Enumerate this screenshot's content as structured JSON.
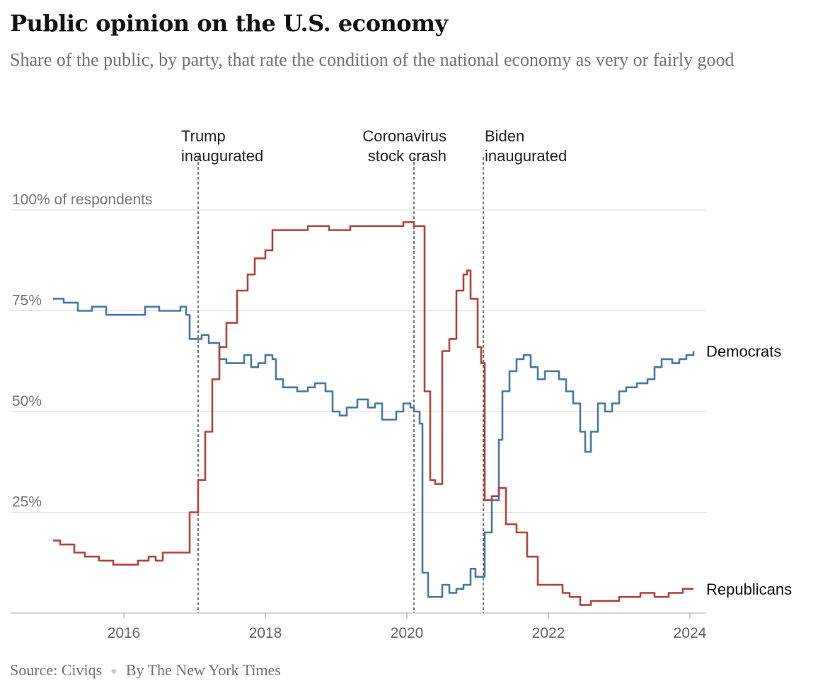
{
  "header": {
    "title": "Public opinion on the U.S. economy",
    "subtitle": "Share of the public, by party, that rate the condition of the national economy as very or fairly good"
  },
  "footer": {
    "source": "Source: Civiqs",
    "byline": "By The New York Times"
  },
  "chart_data": {
    "type": "line",
    "x_axis": {
      "min": 2015.0,
      "max": 2024.1,
      "ticks": [
        2016,
        2018,
        2020,
        2022,
        2024
      ],
      "tick_labels": [
        "2016",
        "2018",
        "2020",
        "2022",
        "2024"
      ]
    },
    "y_axis": {
      "min": 0,
      "max": 100,
      "ticks": [
        25,
        50,
        75,
        100
      ],
      "tick_labels": [
        "25%",
        "50%",
        "75%",
        "100% of respondents"
      ]
    },
    "grid": true,
    "colors": {
      "democrats": "#4a76a8",
      "republicans": "#b0443c",
      "grid": "#dddddd",
      "annotation": "#333333"
    },
    "annotations": [
      {
        "x": 2017.05,
        "lines": [
          "Trump",
          "inaugurated"
        ],
        "align": "left"
      },
      {
        "x": 2020.1,
        "lines": [
          "Coronavirus",
          "stock crash"
        ],
        "align": "right"
      },
      {
        "x": 2021.08,
        "lines": [
          "Biden",
          "inaugurated"
        ],
        "align": "left"
      }
    ],
    "series": [
      {
        "name": "Democrats",
        "color": "#4a76a8",
        "points": [
          [
            2015.0,
            78
          ],
          [
            2015.15,
            77
          ],
          [
            2015.35,
            75
          ],
          [
            2015.55,
            76
          ],
          [
            2015.75,
            74
          ],
          [
            2016.0,
            74
          ],
          [
            2016.3,
            76
          ],
          [
            2016.5,
            75
          ],
          [
            2016.8,
            76
          ],
          [
            2016.88,
            74
          ],
          [
            2016.93,
            68
          ],
          [
            2017.1,
            69
          ],
          [
            2017.2,
            67
          ],
          [
            2017.35,
            63
          ],
          [
            2017.45,
            62
          ],
          [
            2017.65,
            62
          ],
          [
            2017.7,
            64
          ],
          [
            2017.8,
            61
          ],
          [
            2017.9,
            62
          ],
          [
            2018.0,
            64
          ],
          [
            2018.1,
            63
          ],
          [
            2018.15,
            58
          ],
          [
            2018.25,
            56
          ],
          [
            2018.45,
            55
          ],
          [
            2018.6,
            56
          ],
          [
            2018.7,
            57
          ],
          [
            2018.85,
            55
          ],
          [
            2018.95,
            50
          ],
          [
            2019.05,
            49
          ],
          [
            2019.15,
            51
          ],
          [
            2019.3,
            53
          ],
          [
            2019.45,
            51
          ],
          [
            2019.55,
            52
          ],
          [
            2019.65,
            48
          ],
          [
            2019.75,
            48
          ],
          [
            2019.85,
            50
          ],
          [
            2019.95,
            52
          ],
          [
            2020.05,
            51
          ],
          [
            2020.1,
            50
          ],
          [
            2020.18,
            47
          ],
          [
            2020.22,
            10
          ],
          [
            2020.3,
            4
          ],
          [
            2020.4,
            4
          ],
          [
            2020.5,
            7
          ],
          [
            2020.6,
            5
          ],
          [
            2020.7,
            6
          ],
          [
            2020.8,
            7
          ],
          [
            2020.9,
            11
          ],
          [
            2020.97,
            9
          ],
          [
            2021.05,
            9
          ],
          [
            2021.1,
            20
          ],
          [
            2021.2,
            28
          ],
          [
            2021.3,
            43
          ],
          [
            2021.35,
            55
          ],
          [
            2021.45,
            60
          ],
          [
            2021.55,
            63
          ],
          [
            2021.65,
            64
          ],
          [
            2021.75,
            61
          ],
          [
            2021.85,
            58
          ],
          [
            2021.95,
            60
          ],
          [
            2022.05,
            60
          ],
          [
            2022.15,
            58
          ],
          [
            2022.25,
            55
          ],
          [
            2022.35,
            52
          ],
          [
            2022.45,
            45
          ],
          [
            2022.52,
            40
          ],
          [
            2022.6,
            45
          ],
          [
            2022.7,
            52
          ],
          [
            2022.8,
            50
          ],
          [
            2022.9,
            52
          ],
          [
            2023.0,
            55
          ],
          [
            2023.1,
            56
          ],
          [
            2023.25,
            57
          ],
          [
            2023.4,
            58
          ],
          [
            2023.5,
            61
          ],
          [
            2023.6,
            63
          ],
          [
            2023.75,
            62
          ],
          [
            2023.85,
            63
          ],
          [
            2023.95,
            64
          ],
          [
            2024.05,
            65
          ]
        ]
      },
      {
        "name": "Republicans",
        "color": "#b0443c",
        "points": [
          [
            2015.0,
            18
          ],
          [
            2015.1,
            17
          ],
          [
            2015.3,
            15
          ],
          [
            2015.45,
            14
          ],
          [
            2015.65,
            13
          ],
          [
            2015.85,
            12
          ],
          [
            2016.0,
            12
          ],
          [
            2016.2,
            13
          ],
          [
            2016.35,
            14
          ],
          [
            2016.45,
            13
          ],
          [
            2016.55,
            15
          ],
          [
            2016.88,
            15
          ],
          [
            2016.93,
            25
          ],
          [
            2017.05,
            33
          ],
          [
            2017.15,
            45
          ],
          [
            2017.25,
            58
          ],
          [
            2017.35,
            66
          ],
          [
            2017.45,
            72
          ],
          [
            2017.6,
            80
          ],
          [
            2017.75,
            84
          ],
          [
            2017.85,
            88
          ],
          [
            2018.0,
            90
          ],
          [
            2018.1,
            95
          ],
          [
            2018.3,
            95
          ],
          [
            2018.6,
            96
          ],
          [
            2018.9,
            95
          ],
          [
            2019.2,
            96
          ],
          [
            2019.95,
            97
          ],
          [
            2020.1,
            96
          ],
          [
            2020.2,
            96
          ],
          [
            2020.25,
            55
          ],
          [
            2020.33,
            33
          ],
          [
            2020.4,
            32
          ],
          [
            2020.5,
            65
          ],
          [
            2020.6,
            68
          ],
          [
            2020.7,
            80
          ],
          [
            2020.8,
            84
          ],
          [
            2020.85,
            85
          ],
          [
            2020.9,
            78
          ],
          [
            2021.0,
            66
          ],
          [
            2021.05,
            62
          ],
          [
            2021.1,
            28
          ],
          [
            2021.2,
            29
          ],
          [
            2021.3,
            31
          ],
          [
            2021.4,
            22
          ],
          [
            2021.55,
            20
          ],
          [
            2021.7,
            14
          ],
          [
            2021.85,
            7
          ],
          [
            2022.0,
            7
          ],
          [
            2022.2,
            5
          ],
          [
            2022.3,
            4
          ],
          [
            2022.45,
            2
          ],
          [
            2022.6,
            3
          ],
          [
            2022.9,
            3
          ],
          [
            2023.0,
            4
          ],
          [
            2023.3,
            5
          ],
          [
            2023.5,
            4
          ],
          [
            2023.7,
            5
          ],
          [
            2023.9,
            6
          ],
          [
            2024.05,
            6
          ]
        ]
      }
    ]
  }
}
